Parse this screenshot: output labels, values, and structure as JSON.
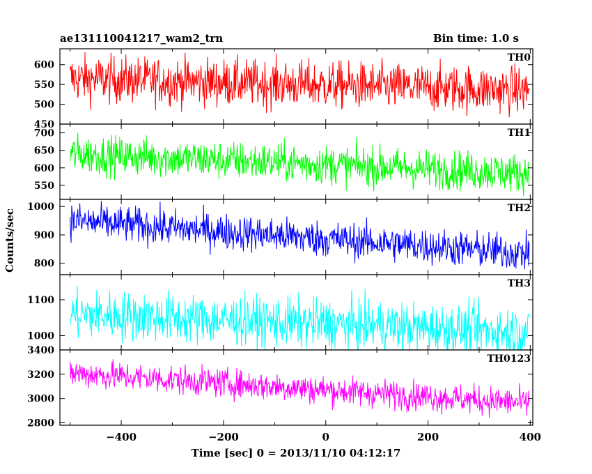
{
  "chart_data": {
    "type": "line",
    "title_left": "ae131110041217_wam2_trn",
    "title_right": "Bin time: 1.0 s",
    "xlabel": "Time [sec] 0 = 2013/11/10 04:12:17",
    "ylabel": "Counts/sec",
    "xlim": [
      -520,
      405
    ],
    "x_ticks": [
      -400,
      -200,
      0,
      200,
      400
    ],
    "x_range": [
      -500,
      398
    ],
    "bin_time_s": 1.0,
    "panels": [
      {
        "name": "TH0",
        "color": "#ff0000",
        "ylim": [
          450,
          640
        ],
        "yticks": [
          450,
          500,
          550,
          600
        ],
        "mean_start": 565,
        "mean_end": 535,
        "noise": 30
      },
      {
        "name": "TH1",
        "color": "#00ff00",
        "ylim": [
          510,
          725
        ],
        "yticks": [
          550,
          600,
          650,
          700
        ],
        "mean_start": 640,
        "mean_end": 585,
        "noise": 28
      },
      {
        "name": "TH2",
        "color": "#0000ff",
        "ylim": [
          760,
          1025
        ],
        "yticks": [
          800,
          900,
          1000
        ],
        "mean_start": 950,
        "mean_end": 835,
        "noise": 32
      },
      {
        "name": "TH3",
        "color": "#00ffff",
        "ylim": [
          960,
          1170
        ],
        "yticks": [
          1000,
          1100
        ],
        "mean_start": 1060,
        "mean_end": 1010,
        "noise": 35
      },
      {
        "name": "TH0123",
        "color": "#ff00ff",
        "ylim": [
          2780,
          3400
        ],
        "yticks": [
          2800,
          3000,
          3200,
          3400
        ],
        "mean_start": 3210,
        "mean_end": 2960,
        "noise": 60
      }
    ]
  }
}
